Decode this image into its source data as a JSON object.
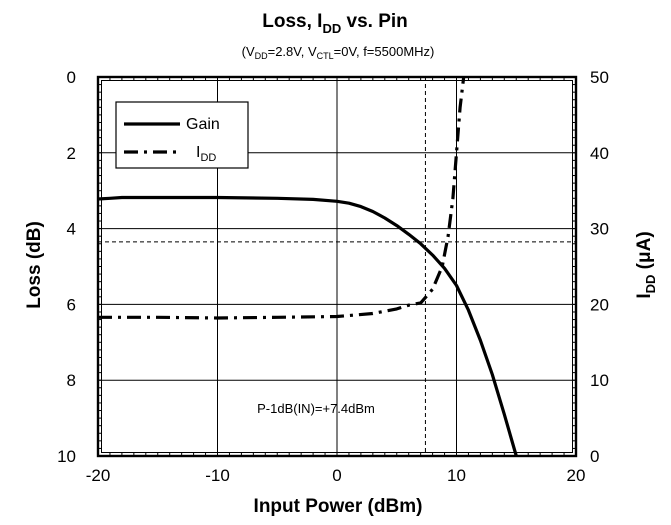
{
  "chart_data": {
    "type": "line",
    "title": {
      "main": "Loss, I",
      "sub": "DD",
      "rest": " vs. Pin"
    },
    "subtitle": {
      "p1": "(V",
      "s1": "DD",
      "p2": "=2.8V, V",
      "s2": "CTL",
      "p3": "=0V, f=5500MHz)"
    },
    "xlabel": "Input Power (dBm)",
    "ylabel_left": "Loss (dB)",
    "ylabel_right": {
      "main": "I",
      "sub": "DD",
      "rest": " (μA)"
    },
    "xlim": [
      -20,
      20
    ],
    "ylim_left": [
      0,
      10
    ],
    "ylim_left_inverted": true,
    "ylim_right": [
      0,
      50
    ],
    "x_ticks": [
      "-20",
      "-10",
      "0",
      "10",
      "20"
    ],
    "y_left_ticks": [
      "0",
      "2",
      "4",
      "6",
      "8",
      "10"
    ],
    "y_right_ticks": [
      "50",
      "40",
      "30",
      "20",
      "10",
      "0"
    ],
    "grid": true,
    "legend_position": "top-left",
    "legend": [
      {
        "label": "Gain",
        "style": "solid"
      },
      {
        "main": "I",
        "sub": "DD",
        "style": "dash-dot"
      }
    ],
    "annotation": "P-1dB(IN)=+7.4dBm",
    "reference_lines": {
      "x": 7.4,
      "y_left": 4.35
    },
    "series": [
      {
        "name": "Gain",
        "axis": "left",
        "style": "solid",
        "x": [
          -20,
          -19,
          -18,
          -15,
          -10,
          -5,
          -2,
          0,
          1,
          2,
          3,
          4,
          5,
          6,
          7,
          8,
          9,
          10,
          11,
          12,
          13,
          14,
          15
        ],
        "y": [
          3.22,
          3.2,
          3.18,
          3.18,
          3.18,
          3.2,
          3.23,
          3.28,
          3.33,
          3.42,
          3.55,
          3.72,
          3.92,
          4.15,
          4.4,
          4.7,
          5.05,
          5.5,
          6.15,
          6.95,
          7.85,
          8.9,
          10.0
        ]
      },
      {
        "name": "IDD",
        "axis": "right",
        "style": "dash-dot",
        "x": [
          -20,
          -15,
          -10,
          -5,
          0,
          3,
          5,
          6,
          7,
          8,
          8.8,
          9.3,
          9.7,
          10.0,
          10.3,
          10.6
        ],
        "y": [
          18.3,
          18.3,
          18.2,
          18.3,
          18.4,
          18.8,
          19.4,
          19.9,
          20.2,
          22.0,
          25.0,
          29.0,
          34.0,
          40.0,
          46.0,
          50.0
        ]
      }
    ]
  }
}
